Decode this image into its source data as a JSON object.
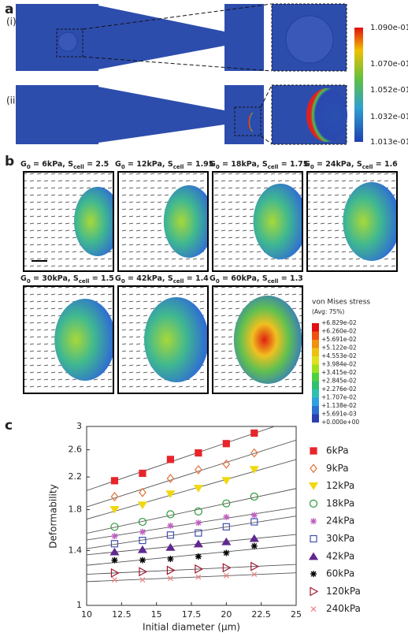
{
  "panel_a": {
    "label": "a",
    "rows": [
      "(i)",
      "(ii)"
    ],
    "colorbar": [
      "1.090e-01",
      "1.070e-01",
      "1.052e-01",
      "1.032e-01",
      "1.013e-01"
    ]
  },
  "panel_b": {
    "label": "b",
    "titles": [
      [
        "G",
        "0",
        " = 6kPa, S",
        "cell",
        " = 2.5"
      ],
      [
        "G",
        "0",
        " = 12kPa, S",
        "cell",
        " = 1.95"
      ],
      [
        "G",
        "0",
        " = 18kPa, S",
        "cell",
        " = 1.75"
      ],
      [
        "G",
        "0",
        " = 24kPa, S",
        "cell",
        " = 1.6"
      ],
      [
        "G",
        "0",
        " = 30kPa, S",
        "cell",
        " = 1.5"
      ],
      [
        "G",
        "0",
        " = 42kPa, S",
        "cell",
        " = 1.4"
      ],
      [
        "G",
        "0",
        " = 60kPa, S",
        "cell",
        " = 1.3"
      ]
    ],
    "legend": {
      "title": "von Mises stress",
      "subtitle": "(Avg: 75%)",
      "levels": [
        "+6.829e-02",
        "+6.260e-02",
        "+5.691e-02",
        "+5.122e-02",
        "+4.553e-02",
        "+3.984e-02",
        "+3.415e-02",
        "+2.845e-02",
        "+2.276e-02",
        "+1.707e-02",
        "+1.138e-02",
        "+5.691e-03",
        "+0.000e+00"
      ]
    }
  },
  "chart_data": {
    "label": "c",
    "type": "scatter",
    "xlabel": "Initial diameter (μm)",
    "ylabel": "Deformability",
    "x": [
      12,
      14,
      16,
      18,
      20,
      22
    ],
    "xlim": [
      10,
      25
    ],
    "xticks": [
      10,
      12.5,
      15,
      17.5,
      20,
      22.5,
      25
    ],
    "ylim": [
      1,
      3
    ],
    "yticks": [
      1,
      1.4,
      1.8,
      2.2,
      2.6,
      3
    ],
    "log_y": true,
    "fit_lines": true,
    "series": [
      {
        "name": "6kPa",
        "color": "#e8252a",
        "marker": "square",
        "filled": true,
        "values": [
          2.15,
          2.25,
          2.45,
          2.55,
          2.7,
          2.88
        ]
      },
      {
        "name": "9kPa",
        "color": "#e0703a",
        "marker": "diamond",
        "filled": false,
        "values": [
          1.95,
          2.0,
          2.18,
          2.3,
          2.38,
          2.55
        ]
      },
      {
        "name": "12kPa",
        "color": "#f0d810",
        "marker": "triangle-down",
        "filled": true,
        "values": [
          1.8,
          1.85,
          1.98,
          2.05,
          2.15,
          2.3
        ]
      },
      {
        "name": "18kPa",
        "color": "#2e9a3a",
        "marker": "circle",
        "filled": false,
        "values": [
          1.62,
          1.67,
          1.75,
          1.78,
          1.87,
          1.95
        ]
      },
      {
        "name": "24kPa",
        "color": "#c060c0",
        "marker": "star",
        "filled": true,
        "values": [
          1.53,
          1.57,
          1.63,
          1.66,
          1.72,
          1.74
        ]
      },
      {
        "name": "30kPa",
        "color": "#4050b0",
        "marker": "square",
        "filled": false,
        "values": [
          1.46,
          1.49,
          1.54,
          1.56,
          1.62,
          1.67
        ]
      },
      {
        "name": "42kPa",
        "color": "#602890",
        "marker": "triangle-up",
        "filled": true,
        "values": [
          1.39,
          1.41,
          1.43,
          1.46,
          1.48,
          1.51
        ]
      },
      {
        "name": "60kPa",
        "color": "#000000",
        "marker": "star",
        "filled": true,
        "values": [
          1.32,
          1.32,
          1.33,
          1.35,
          1.38,
          1.44
        ]
      },
      {
        "name": "120kPa",
        "color": "#a01830",
        "marker": "triangle-right",
        "filled": false,
        "values": [
          1.22,
          1.23,
          1.24,
          1.25,
          1.26,
          1.27
        ]
      },
      {
        "name": "240kPa",
        "color": "#f08080",
        "marker": "x",
        "filled": true,
        "values": [
          1.17,
          1.17,
          1.18,
          1.19,
          1.2,
          1.21
        ]
      }
    ]
  }
}
